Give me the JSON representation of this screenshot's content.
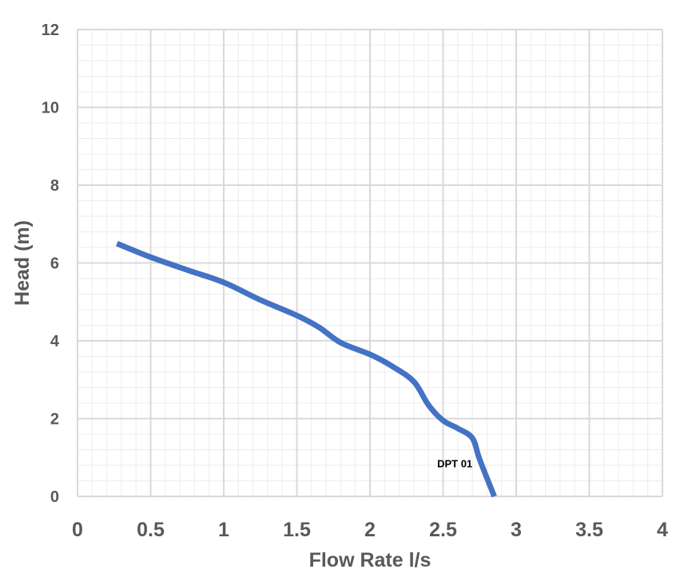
{
  "chart_data": {
    "type": "line",
    "title": "",
    "xlabel": "Flow Rate l/s",
    "ylabel": "Head (m)",
    "xlim": [
      0,
      4
    ],
    "ylim": [
      0,
      12
    ],
    "x_ticks": [
      "0",
      "0.5",
      "1",
      "1.5",
      "2",
      "2.5",
      "3",
      "3.5",
      "4"
    ],
    "y_ticks": [
      "0",
      "2",
      "4",
      "6",
      "8",
      "10",
      "12"
    ],
    "x_tick_values": [
      0,
      0.5,
      1,
      1.5,
      2,
      2.5,
      3,
      3.5,
      4
    ],
    "y_tick_values": [
      0,
      2,
      4,
      6,
      8,
      10,
      12
    ],
    "grid": true,
    "minor_grid_divisions": 5,
    "legend": "none",
    "series": [
      {
        "color": "#4472C4",
        "x": [
          0.27,
          0.5,
          0.75,
          1.0,
          1.25,
          1.5,
          1.65,
          1.8,
          2.0,
          2.15,
          2.3,
          2.4,
          2.5,
          2.6,
          2.7,
          2.75,
          2.85
        ],
        "y": [
          6.5,
          6.15,
          5.82,
          5.5,
          5.05,
          4.65,
          4.35,
          3.95,
          3.65,
          3.35,
          2.95,
          2.35,
          1.95,
          1.75,
          1.5,
          0.95,
          0.0
        ]
      }
    ],
    "annotations": [
      {
        "text": "DPT 01",
        "x": 2.58,
        "y": 0.75
      }
    ],
    "colors": {
      "grid_major": "#d9d9d9",
      "grid_minor": "#ececec",
      "tick_text": "#595959",
      "series": "#4472C4"
    }
  }
}
